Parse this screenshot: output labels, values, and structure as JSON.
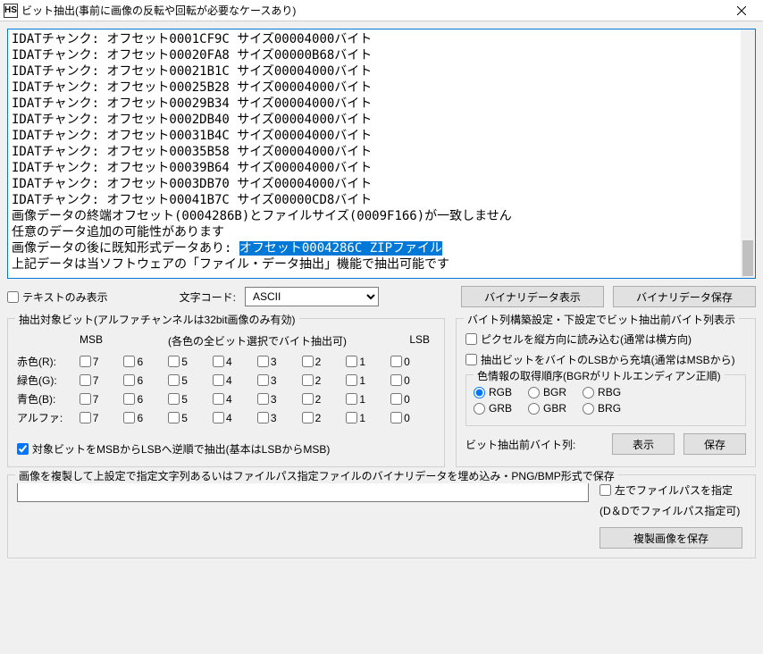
{
  "window": {
    "title": "ビット抽出(事前に画像の反転や回転が必要なケースあり)",
    "icon": "HS"
  },
  "log": {
    "lines": [
      "IDATチャンク: オフセット0001CF9C サイズ00004000バイト",
      "IDATチャンク: オフセット00020FA8 サイズ00000B68バイト",
      "IDATチャンク: オフセット00021B1C サイズ00004000バイト",
      "IDATチャンク: オフセット00025B28 サイズ00004000バイト",
      "IDATチャンク: オフセット00029B34 サイズ00004000バイト",
      "IDATチャンク: オフセット0002DB40 サイズ00004000バイト",
      "IDATチャンク: オフセット00031B4C サイズ00004000バイト",
      "IDATチャンク: オフセット00035B58 サイズ00004000バイト",
      "IDATチャンク: オフセット00039B64 サイズ00004000バイト",
      "IDATチャンク: オフセット0003DB70 サイズ00004000バイト",
      "IDATチャンク: オフセット00041B7C サイズ00000CD8バイト",
      "画像データの終端オフセット(0004286B)とファイルサイズ(0009F166)が一致しません",
      "任意のデータ追加の可能性があります"
    ],
    "highlight_prefix": "画像データの後に既知形式データあり: ",
    "highlight_text": "オフセット0004286C ZIPファイル",
    "after_line": "上記データは当ソフトウェアの「ファイル・データ抽出」機能で抽出可能です"
  },
  "row1": {
    "text_only": "テキストのみ表示",
    "charcode_label": "文字コード:",
    "charcode_value": "ASCII",
    "show_binary": "バイナリデータ表示",
    "save_binary": "バイナリデータ保存"
  },
  "bits": {
    "group_title": "抽出対象ビット(アルファチャンネルは32bit画像のみ有効)",
    "msb": "MSB",
    "mid_hint": "(各色の全ビット選択でバイト抽出可)",
    "lsb": "LSB",
    "rows": [
      {
        "label": "赤色(R):"
      },
      {
        "label": "緑色(G):"
      },
      {
        "label": "青色(B):"
      },
      {
        "label": "アルファ:"
      }
    ],
    "cols": [
      "7",
      "6",
      "5",
      "4",
      "3",
      "2",
      "1",
      "0"
    ],
    "reverse_check": "対象ビットをMSBからLSBへ逆順で抽出(基本はLSBからMSB)"
  },
  "bytes": {
    "group_title": "バイト列構築設定・下設定でビット抽出前バイト列表示",
    "vertical": "ピクセルを縦方向に読み込む(通常は横方向)",
    "lsb_fill": "抽出ビットをバイトのLSBから充填(通常はMSBから)",
    "color_order_title": "色情報の取得順序(BGRがリトルエンディアン正順)",
    "radios_a": [
      "RGB",
      "BGR",
      "RBG"
    ],
    "radios_b": [
      "GRB",
      "GBR",
      "BRG"
    ],
    "pre_label": "ビット抽出前バイト列:",
    "show": "表示",
    "save": "保存"
  },
  "embed": {
    "group_title": "画像を複製して上設定で指定文字列あるいはファイルパス指定ファイルのバイナリデータを埋め込み・PNG/BMP形式で保存",
    "path_check": "左でファイルパスを指定",
    "dd_hint": "(D＆Dでファイルパス指定可)",
    "save_copy": "複製画像を保存"
  }
}
